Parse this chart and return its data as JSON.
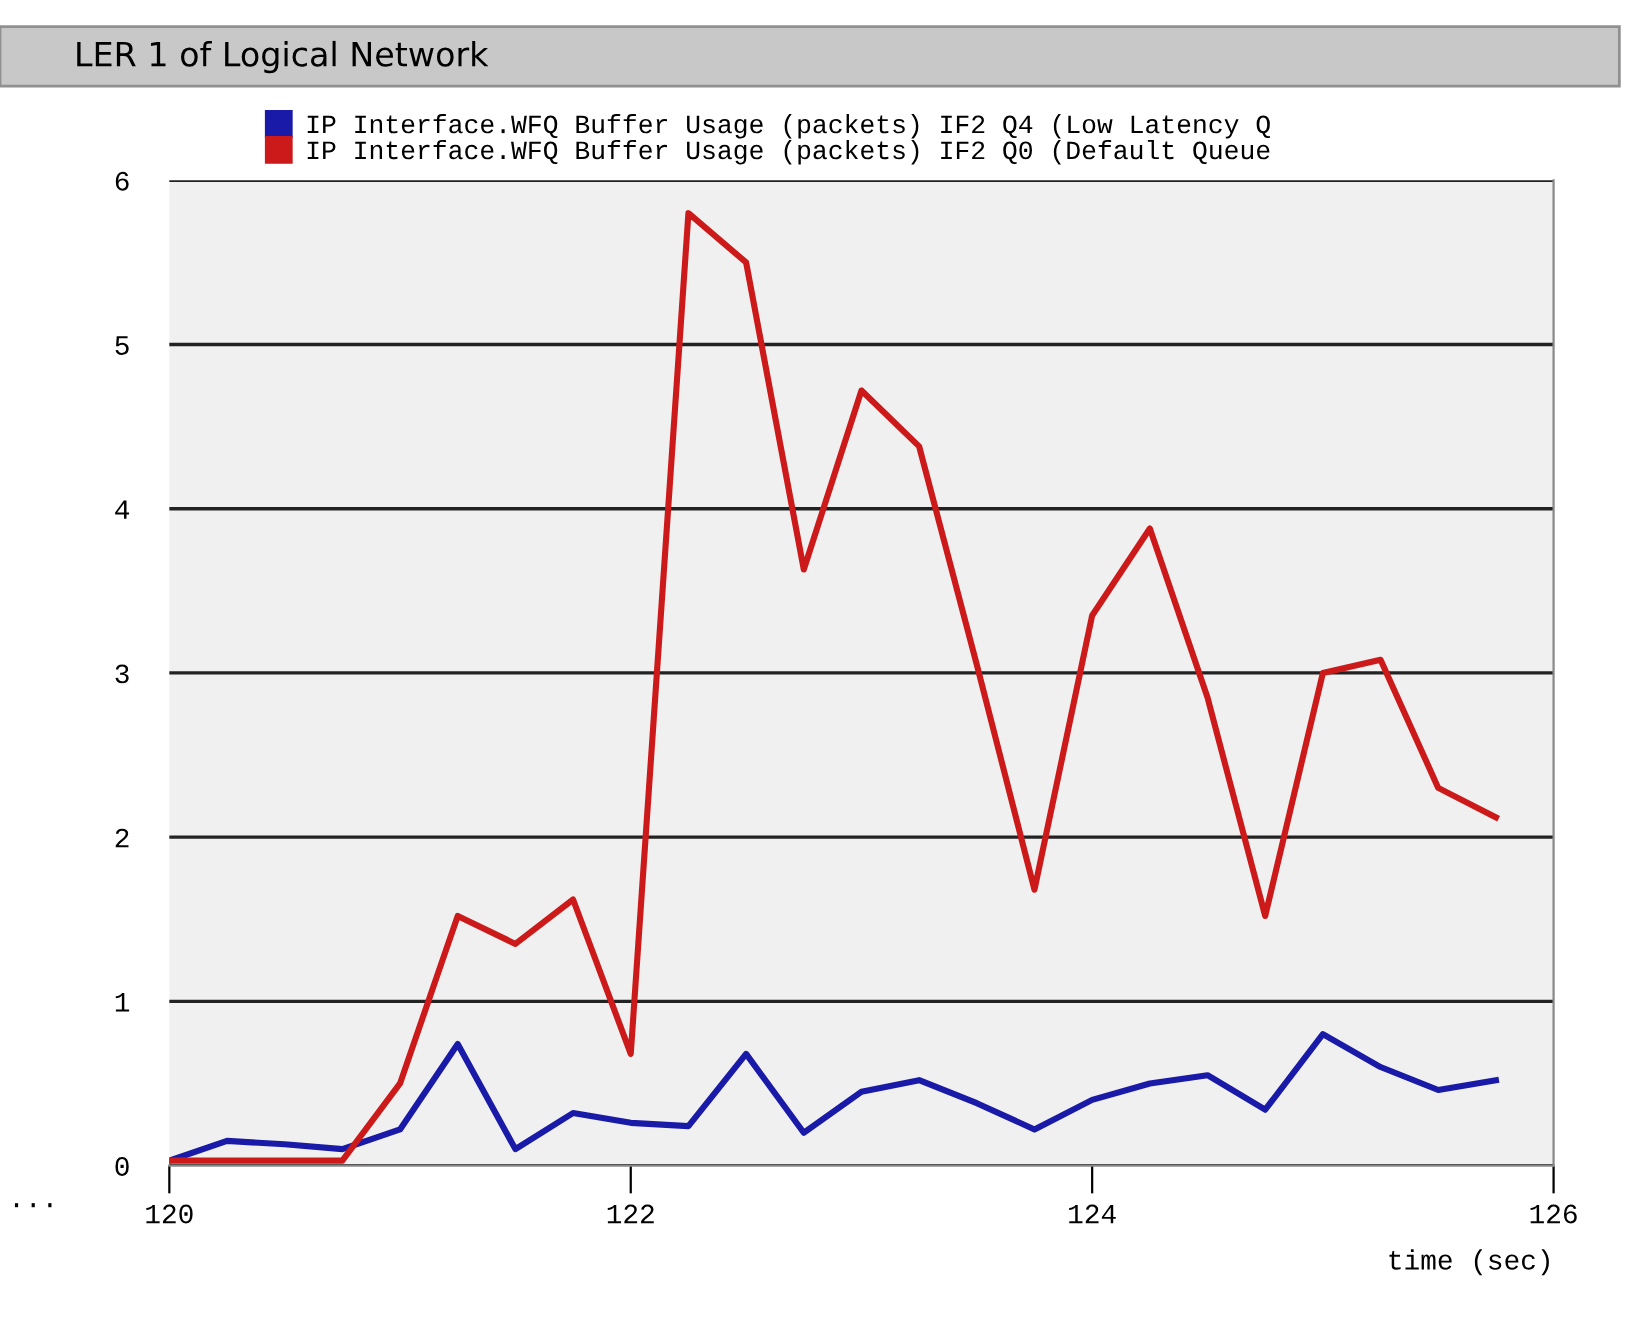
{
  "chart_data": {
    "type": "line",
    "title": "LER 1 of Logical Network",
    "xlabel": "time (sec)",
    "annotations": [
      "..."
    ],
    "x": [
      120,
      120.25,
      120.5,
      120.75,
      121,
      121.25,
      121.5,
      121.75,
      122,
      122.25,
      122.5,
      122.75,
      123,
      123.25,
      123.5,
      123.75,
      124,
      124.25,
      124.5,
      124.75,
      125,
      125.25,
      125.5,
      125.75
    ],
    "series": [
      {
        "name": "IP Interface.WFQ Buffer Usage (packets) IF2 Q4 (Low Latency Q",
        "color": "#1a1aa8",
        "values": [
          0.03,
          0.15,
          0.13,
          0.1,
          0.22,
          0.74,
          0.1,
          0.32,
          0.26,
          0.24,
          0.68,
          0.2,
          0.45,
          0.52,
          0.38,
          0.22,
          0.4,
          0.5,
          0.55,
          0.34,
          0.8,
          0.6,
          0.46,
          0.52
        ]
      },
      {
        "name": "IP Interface.WFQ Buffer Usage (packets) IF2 Q0 (Default Queue",
        "color": "#cc1a1a",
        "values": [
          0.03,
          0.03,
          0.03,
          0.03,
          0.5,
          1.52,
          1.35,
          1.62,
          0.68,
          5.8,
          5.5,
          3.63,
          4.72,
          4.38,
          3.05,
          1.68,
          3.35,
          3.88,
          2.85,
          1.52,
          3.0,
          3.08,
          2.3,
          2.12
        ]
      }
    ],
    "xlim": [
      120,
      126
    ],
    "xticks": [
      120,
      122,
      124,
      126
    ],
    "ylim": [
      0,
      6
    ],
    "yticks": [
      0,
      1,
      2,
      3,
      4,
      5,
      6
    ],
    "grid": "y",
    "legend": "top",
    "marker": "none",
    "line_style": "solid"
  }
}
